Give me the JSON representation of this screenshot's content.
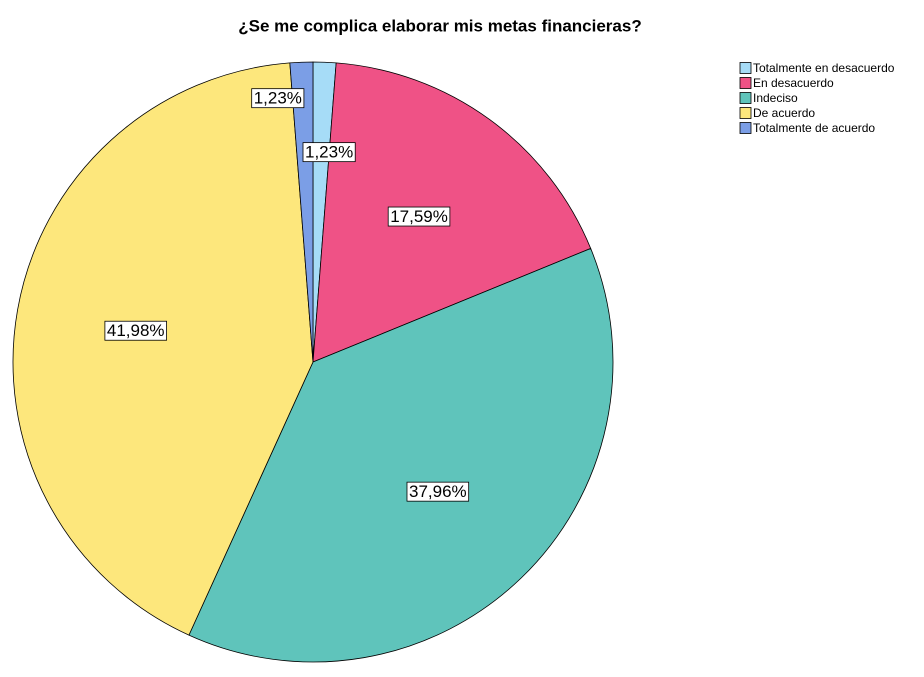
{
  "chart_data": {
    "type": "pie",
    "title": "¿Se me complica elaborar mis metas financieras?",
    "categories": [
      "Totalmente en desacuerdo",
      "En desacuerdo",
      "Indeciso",
      "De acuerdo",
      "Totalmente de acuerdo"
    ],
    "values": [
      1.23,
      17.59,
      37.96,
      41.98,
      1.23
    ],
    "value_labels": [
      "1,23%",
      "17,59%",
      "37,96%",
      "41,98%",
      "1,23%"
    ],
    "colors": [
      "#a6dcf7",
      "#ef5286",
      "#5fc4bb",
      "#fde77c",
      "#7b9ee6"
    ],
    "legend": "top-right"
  }
}
